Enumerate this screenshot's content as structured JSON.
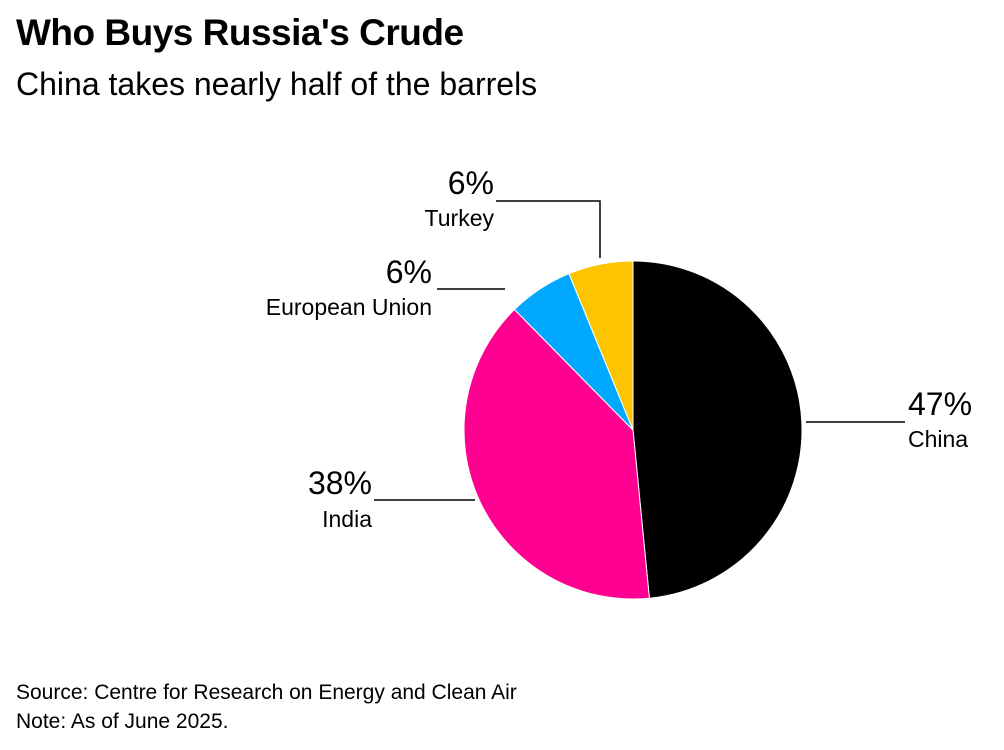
{
  "chart_data": {
    "type": "pie",
    "title": "Who Buys Russia's Crude",
    "subtitle": "China takes nearly half of the barrels",
    "slices": [
      {
        "label": "China",
        "value": 47,
        "value_label": "47%",
        "color": "#000000"
      },
      {
        "label": "India",
        "value": 38,
        "value_label": "38%",
        "color": "#ff0090"
      },
      {
        "label": "European Union",
        "value": 6,
        "value_label": "6%",
        "color": "#00a9ff"
      },
      {
        "label": "Turkey",
        "value": 6,
        "value_label": "6%",
        "color": "#ffc400"
      }
    ],
    "start_angle_deg": 0,
    "direction": "clockwise"
  },
  "footer": {
    "source": "Source: Centre for Research on Energy and Clean Air",
    "note": "Note: As of June 2025."
  }
}
